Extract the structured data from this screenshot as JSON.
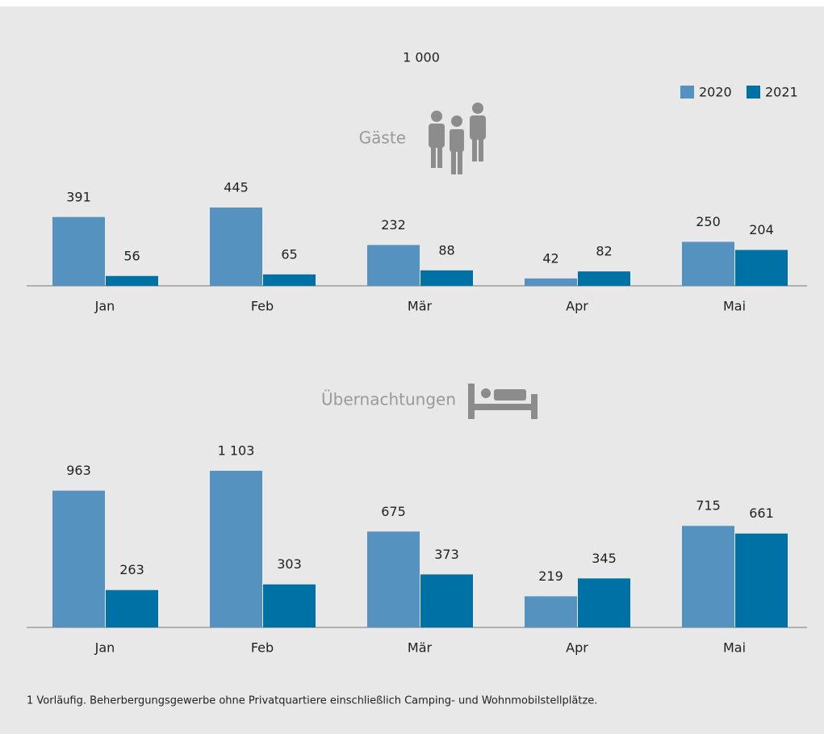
{
  "unit_label": "1 000",
  "chart_data": [
    {
      "type": "bar",
      "title": "Gäste",
      "categories": [
        "Jan",
        "Feb",
        "Mär",
        "Apr",
        "Mai"
      ],
      "series": [
        {
          "name": "2020",
          "color": "#5592c0",
          "values": [
            391,
            445,
            232,
            42,
            250
          ]
        },
        {
          "name": "2021",
          "color": "#0071a4",
          "values": [
            56,
            65,
            88,
            82,
            204
          ]
        }
      ]
    },
    {
      "type": "bar",
      "title": "Übernachtungen",
      "categories": [
        "Jan",
        "Feb",
        "Mär",
        "Apr",
        "Mai"
      ],
      "series": [
        {
          "color": "#5592c0",
          "values": [
            963,
            1103,
            675,
            219,
            715
          ],
          "value_labels": [
            "963",
            "1 103",
            "675",
            "219",
            "715"
          ]
        },
        {
          "color": "#0071a4",
          "values": [
            263,
            303,
            373,
            345,
            661
          ]
        }
      ]
    }
  ],
  "footnote": "1 Vorläufig. Beherbergungsgewerbe ohne Privatquartiere einschließlich Camping- und Wohnmobilstellplätze."
}
